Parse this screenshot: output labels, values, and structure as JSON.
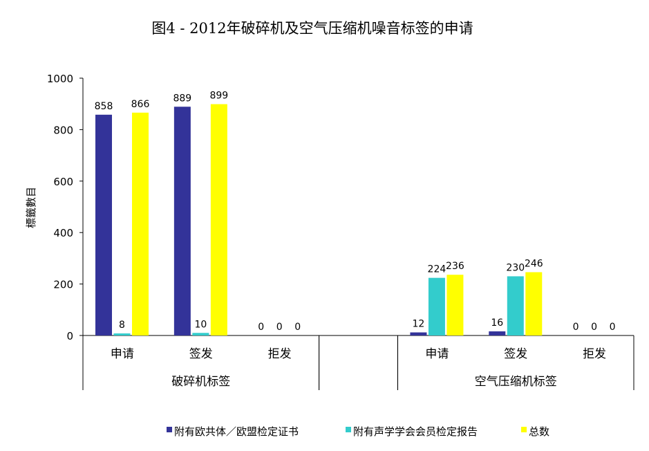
{
  "chart_data": {
    "type": "bar",
    "title": "图4 - 2012年破碎机及空气压缩机噪音标签的申请",
    "ylabel": "標籤數目",
    "xlabel": "",
    "ylim": [
      0,
      1000
    ],
    "yticks": [
      "0",
      "200",
      "400",
      "600",
      "800",
      "1000"
    ],
    "grid": false,
    "legend_position": "bottom",
    "groups": [
      {
        "label": "破碎机标签",
        "categories": [
          "申请",
          "签发",
          "拒发"
        ]
      },
      {
        "label": "",
        "categories": [
          ""
        ]
      },
      {
        "label": "空气压缩机标签",
        "categories": [
          "申请",
          "签发",
          "拒发"
        ]
      }
    ],
    "series": [
      {
        "name": "附有欧共体／欧盟检定证书",
        "color": "#333399",
        "values": [
          858,
          889,
          0,
          null,
          12,
          16,
          0
        ]
      },
      {
        "name": "附有声学学会会员检定报告",
        "color": "#33CCCC",
        "values": [
          8,
          10,
          0,
          null,
          224,
          230,
          0
        ]
      },
      {
        "name": "总数",
        "color": "#FFFF00",
        "values": [
          866,
          899,
          0,
          null,
          236,
          246,
          0
        ]
      }
    ]
  }
}
